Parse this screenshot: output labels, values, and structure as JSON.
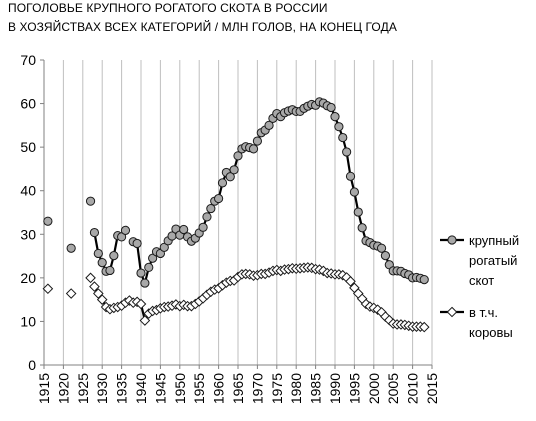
{
  "chart_data": {
    "type": "line",
    "title": "ПОГОЛОВЬЕ КРУПНОГО РОГАТОГО СКОТА В РОССИИ",
    "subtitle": "В ХОЗЯЙСТВАХ ВСЕХ  КАТЕГОРИЙ / МЛН ГОЛОВ, НА КОНЕЦ ГОДА",
    "xlabel": "",
    "ylabel": "",
    "xlim": [
      1915,
      2015
    ],
    "ylim": [
      0,
      70
    ],
    "x_ticks": [
      "1915",
      "1920",
      "1925",
      "1930",
      "1935",
      "1940",
      "1945",
      "1950",
      "1955",
      "1960",
      "1965",
      "1970",
      "1975",
      "1980",
      "1985",
      "1990",
      "1995",
      "2000",
      "2005",
      "2010",
      "2015"
    ],
    "y_ticks": [
      "0",
      "10",
      "20",
      "30",
      "40",
      "50",
      "60",
      "70"
    ],
    "grid": "vertical",
    "legend_position": "right",
    "series": [
      {
        "name_lines": [
          "крупный",
          "рогатый",
          "скот"
        ],
        "marker": "circle",
        "color": "#000000",
        "marker_fill": "#a8a8a8",
        "points": [
          [
            1916,
            33.0
          ],
          [
            1922,
            26.8
          ],
          [
            1927,
            37.6
          ],
          [
            1928,
            30.4
          ],
          [
            1929,
            25.6
          ],
          [
            1930,
            23.5
          ],
          [
            1931,
            21.5
          ],
          [
            1932,
            21.7
          ],
          [
            1933,
            25.1
          ],
          [
            1934,
            29.7
          ],
          [
            1935,
            29.4
          ],
          [
            1936,
            30.9
          ],
          [
            1938,
            28.3
          ],
          [
            1939,
            27.9
          ],
          [
            1940,
            21.1
          ],
          [
            1941,
            18.8
          ],
          [
            1942,
            22.4
          ],
          [
            1943,
            24.5
          ],
          [
            1944,
            26.0
          ],
          [
            1945,
            25.6
          ],
          [
            1946,
            27.0
          ],
          [
            1947,
            28.5
          ],
          [
            1948,
            29.6
          ],
          [
            1949,
            31.2
          ],
          [
            1950,
            29.8
          ],
          [
            1951,
            31.1
          ],
          [
            1952,
            29.4
          ],
          [
            1953,
            28.4
          ],
          [
            1954,
            29.1
          ],
          [
            1955,
            30.3
          ],
          [
            1956,
            31.6
          ],
          [
            1957,
            34.0
          ],
          [
            1958,
            35.9
          ],
          [
            1959,
            37.6
          ],
          [
            1960,
            38.2
          ],
          [
            1961,
            41.8
          ],
          [
            1962,
            44.2
          ],
          [
            1963,
            43.2
          ],
          [
            1964,
            44.8
          ],
          [
            1965,
            48.0
          ],
          [
            1966,
            49.6
          ],
          [
            1967,
            50.1
          ],
          [
            1968,
            49.9
          ],
          [
            1969,
            49.6
          ],
          [
            1970,
            51.4
          ],
          [
            1971,
            53.3
          ],
          [
            1972,
            53.9
          ],
          [
            1973,
            55.0
          ],
          [
            1974,
            56.6
          ],
          [
            1975,
            57.7
          ],
          [
            1976,
            57.0
          ],
          [
            1977,
            57.9
          ],
          [
            1978,
            58.3
          ],
          [
            1979,
            58.6
          ],
          [
            1980,
            58.2
          ],
          [
            1981,
            58.2
          ],
          [
            1982,
            58.9
          ],
          [
            1983,
            59.4
          ],
          [
            1984,
            59.8
          ],
          [
            1985,
            59.6
          ],
          [
            1986,
            60.4
          ],
          [
            1987,
            60.1
          ],
          [
            1988,
            59.5
          ],
          [
            1989,
            59.1
          ],
          [
            1990,
            57.0
          ],
          [
            1991,
            54.7
          ],
          [
            1992,
            52.2
          ],
          [
            1993,
            48.9
          ],
          [
            1994,
            43.3
          ],
          [
            1995,
            39.7
          ],
          [
            1996,
            35.1
          ],
          [
            1997,
            31.5
          ],
          [
            1998,
            28.5
          ],
          [
            1999,
            28.1
          ],
          [
            2000,
            27.5
          ],
          [
            2001,
            27.3
          ],
          [
            2002,
            26.8
          ],
          [
            2003,
            25.1
          ],
          [
            2004,
            23.0
          ],
          [
            2005,
            21.6
          ],
          [
            2006,
            21.6
          ],
          [
            2007,
            21.5
          ],
          [
            2008,
            21.0
          ],
          [
            2009,
            20.7
          ],
          [
            2010,
            20.0
          ],
          [
            2011,
            20.1
          ],
          [
            2012,
            19.9
          ],
          [
            2013,
            19.6
          ]
        ],
        "connected_from_year": 1928
      },
      {
        "name_lines": [
          "в т.ч.",
          "коровы"
        ],
        "marker": "diamond",
        "color": "#000000",
        "marker_fill": "#ffffff",
        "points": [
          [
            1916,
            17.5
          ],
          [
            1922,
            16.4
          ],
          [
            1927,
            20.0
          ],
          [
            1928,
            18.0
          ],
          [
            1929,
            16.4
          ],
          [
            1930,
            15.0
          ],
          [
            1931,
            13.3
          ],
          [
            1932,
            12.8
          ],
          [
            1933,
            13.1
          ],
          [
            1934,
            13.3
          ],
          [
            1935,
            13.6
          ],
          [
            1936,
            14.3
          ],
          [
            1937,
            14.8
          ],
          [
            1938,
            14.3
          ],
          [
            1939,
            14.5
          ],
          [
            1940,
            14.0
          ],
          [
            1941,
            10.2
          ],
          [
            1942,
            11.8
          ],
          [
            1943,
            12.4
          ],
          [
            1944,
            12.6
          ],
          [
            1945,
            13.0
          ],
          [
            1946,
            13.3
          ],
          [
            1947,
            13.4
          ],
          [
            1948,
            13.6
          ],
          [
            1949,
            13.9
          ],
          [
            1950,
            13.5
          ],
          [
            1951,
            13.8
          ],
          [
            1952,
            13.5
          ],
          [
            1953,
            13.5
          ],
          [
            1954,
            14.0
          ],
          [
            1955,
            14.6
          ],
          [
            1956,
            15.3
          ],
          [
            1957,
            16.1
          ],
          [
            1958,
            16.8
          ],
          [
            1959,
            17.3
          ],
          [
            1960,
            17.6
          ],
          [
            1961,
            18.3
          ],
          [
            1962,
            18.9
          ],
          [
            1963,
            19.3
          ],
          [
            1964,
            19.4
          ],
          [
            1965,
            20.2
          ],
          [
            1966,
            20.8
          ],
          [
            1967,
            20.9
          ],
          [
            1968,
            20.8
          ],
          [
            1969,
            20.5
          ],
          [
            1970,
            20.6
          ],
          [
            1971,
            20.9
          ],
          [
            1972,
            20.9
          ],
          [
            1973,
            21.2
          ],
          [
            1974,
            21.6
          ],
          [
            1975,
            21.8
          ],
          [
            1976,
            21.6
          ],
          [
            1977,
            21.9
          ],
          [
            1978,
            22.0
          ],
          [
            1979,
            22.2
          ],
          [
            1980,
            22.1
          ],
          [
            1981,
            22.2
          ],
          [
            1982,
            22.3
          ],
          [
            1983,
            22.4
          ],
          [
            1984,
            22.3
          ],
          [
            1985,
            22.0
          ],
          [
            1986,
            21.9
          ],
          [
            1987,
            21.6
          ],
          [
            1988,
            21.1
          ],
          [
            1989,
            21.0
          ],
          [
            1990,
            20.8
          ],
          [
            1991,
            20.8
          ],
          [
            1992,
            20.6
          ],
          [
            1993,
            20.1
          ],
          [
            1994,
            19.2
          ],
          [
            1995,
            17.7
          ],
          [
            1996,
            16.4
          ],
          [
            1997,
            15.2
          ],
          [
            1998,
            14.0
          ],
          [
            1999,
            13.4
          ],
          [
            2000,
            13.1
          ],
          [
            2001,
            12.7
          ],
          [
            2002,
            12.1
          ],
          [
            2003,
            11.1
          ],
          [
            2004,
            10.3
          ],
          [
            2005,
            9.5
          ],
          [
            2006,
            9.3
          ],
          [
            2007,
            9.3
          ],
          [
            2008,
            9.2
          ],
          [
            2009,
            9.0
          ],
          [
            2010,
            8.8
          ],
          [
            2011,
            8.8
          ],
          [
            2012,
            8.8
          ],
          [
            2013,
            8.7
          ]
        ],
        "connected_from_year": 1928
      }
    ]
  }
}
